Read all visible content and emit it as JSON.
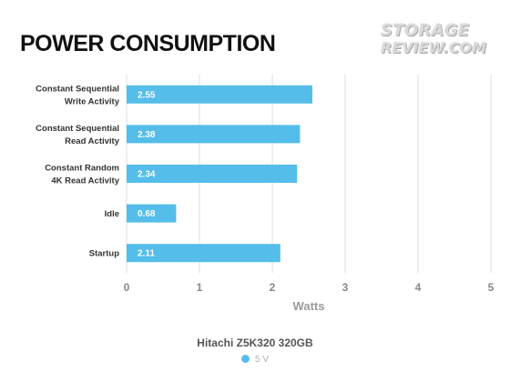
{
  "chart_data": {
    "type": "bar",
    "orientation": "horizontal",
    "title": "POWER CONSUMPTION",
    "categories": [
      "Constant Sequential\nWrite Activity",
      "Constant Sequential\nRead Activity",
      "Constant Random\n4K Read Activity",
      "Idle",
      "Startup"
    ],
    "series": [
      {
        "name": "5 V",
        "values": [
          2.55,
          2.38,
          2.34,
          0.68,
          2.11
        ],
        "color": "#55bdea"
      }
    ],
    "data_labels": [
      "2.55",
      "2.38",
      "2.34",
      "0.68",
      "2.11"
    ],
    "xlabel": "Watts",
    "ylabel": "",
    "xlim": [
      0,
      5
    ],
    "xticks": [
      "0",
      "1",
      "2",
      "3",
      "4",
      "5"
    ],
    "grid": true,
    "legend_title": "Hitachi Z5K320 320GB",
    "legend_placement": "bottom-center"
  },
  "watermark": [
    "STORAGE",
    "REVIEW.COM"
  ]
}
